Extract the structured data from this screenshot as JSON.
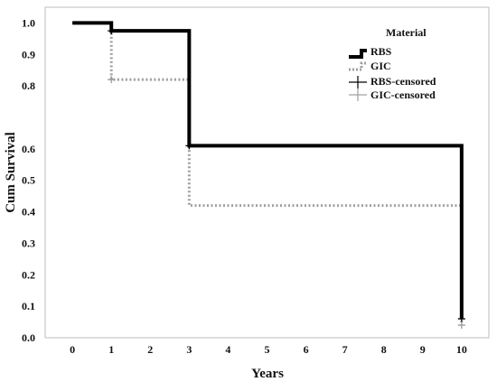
{
  "chart_data": {
    "type": "line",
    "step": true,
    "xlabel": "Years",
    "ylabel": "Cum Survival",
    "xlim": [
      -0.7,
      10.7
    ],
    "ylim": [
      0.0,
      1.05
    ],
    "x_ticks": [
      "0",
      "1",
      "2",
      "3",
      "4",
      "5",
      "6",
      "7",
      "8",
      "9",
      "10"
    ],
    "y_ticks": [
      "0.0",
      "0.1",
      "0.2",
      "0.3",
      "0.4",
      "0.5",
      "0.6",
      "0.8",
      "0.9",
      "1.0"
    ],
    "legend": {
      "title": "Material",
      "placement": "top-right",
      "entries": [
        "RBS",
        "GIC",
        "RBS-censored",
        "GIC-censored"
      ]
    },
    "series": [
      {
        "name": "RBS",
        "color": "#000000",
        "dash": "solid",
        "points": [
          [
            0,
            1.0
          ],
          [
            1,
            0.975
          ],
          [
            3,
            0.61
          ],
          [
            10,
            0.06
          ]
        ],
        "censored": [
          [
            1,
            0.975
          ],
          [
            3,
            0.61
          ],
          [
            10,
            0.06
          ]
        ]
      },
      {
        "name": "GIC",
        "color": "#a0a0a0",
        "dash": "dotted",
        "points": [
          [
            0,
            1.0
          ],
          [
            1,
            0.82
          ],
          [
            3,
            0.42
          ],
          [
            10,
            0.04
          ]
        ],
        "censored": [
          [
            1,
            0.82
          ],
          [
            10,
            0.04
          ]
        ]
      }
    ]
  }
}
